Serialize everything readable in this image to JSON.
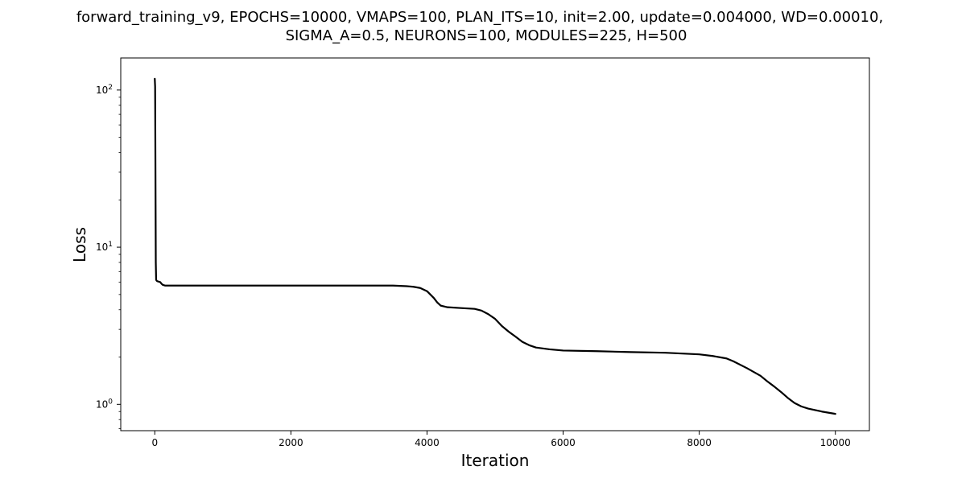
{
  "chart_data": {
    "type": "line",
    "title_lines": [
      "forward_training_v9, EPOCHS=10000, VMAPS=100, PLAN_ITS=10, init=2.00, update=0.004000, WD=0.00010,",
      "SIGMA_A=0.5, NEURONS=100, MODULES=225, H=500"
    ],
    "xlabel": "Iteration",
    "ylabel": "Loss",
    "yscale": "log",
    "xlim": [
      -500,
      10500
    ],
    "ylim": [
      0.68,
      160
    ],
    "grid": false,
    "legend": "none",
    "line_color": "#000000",
    "x_ticks": [
      {
        "value": 0,
        "label": "0"
      },
      {
        "value": 2000,
        "label": "2000"
      },
      {
        "value": 4000,
        "label": "4000"
      },
      {
        "value": 6000,
        "label": "6000"
      },
      {
        "value": 8000,
        "label": "8000"
      },
      {
        "value": 10000,
        "label": "10000"
      }
    ],
    "y_ticks": [
      {
        "value": 1,
        "base": "10",
        "exp": "0"
      },
      {
        "value": 10,
        "base": "10",
        "exp": "1"
      },
      {
        "value": 100,
        "base": "10",
        "exp": "2"
      }
    ],
    "series": [
      {
        "x": [
          0,
          5,
          10,
          15,
          20,
          30,
          50,
          80,
          100,
          120,
          150,
          200,
          500,
          1000,
          2000,
          3000,
          3500,
          3700,
          3800,
          3900,
          4000,
          4100,
          4150,
          4200,
          4300,
          4500,
          4700,
          4800,
          4900,
          5000,
          5100,
          5200,
          5300,
          5400,
          5500,
          5600,
          5800,
          6000,
          6500,
          7000,
          7500,
          8000,
          8200,
          8400,
          8500,
          8700,
          8900,
          9000,
          9100,
          9200,
          9300,
          9400,
          9500,
          9600,
          9800,
          10000
        ],
        "y": [
          118,
          105,
          30,
          8.0,
          6.2,
          6.1,
          6.05,
          6.0,
          5.85,
          5.75,
          5.7,
          5.7,
          5.7,
          5.7,
          5.7,
          5.7,
          5.7,
          5.65,
          5.6,
          5.5,
          5.25,
          4.75,
          4.45,
          4.25,
          4.15,
          4.1,
          4.05,
          3.95,
          3.75,
          3.5,
          3.15,
          2.9,
          2.7,
          2.5,
          2.38,
          2.3,
          2.24,
          2.2,
          2.18,
          2.15,
          2.13,
          2.08,
          2.03,
          1.96,
          1.88,
          1.7,
          1.52,
          1.4,
          1.3,
          1.2,
          1.1,
          1.02,
          0.97,
          0.94,
          0.9,
          0.87
        ]
      }
    ]
  }
}
